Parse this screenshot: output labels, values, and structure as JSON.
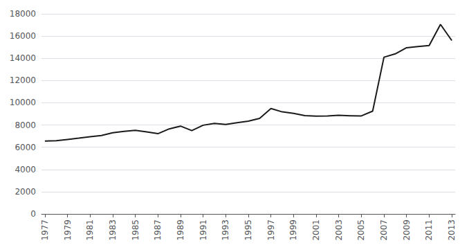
{
  "chart_data": {
    "type": "line",
    "x": [
      1977,
      1978,
      1979,
      1980,
      1981,
      1982,
      1983,
      1984,
      1985,
      1986,
      1987,
      1988,
      1989,
      1990,
      1991,
      1992,
      1993,
      1994,
      1995,
      1996,
      1997,
      1998,
      1999,
      2000,
      2001,
      2002,
      2003,
      2004,
      2005,
      2006,
      2007,
      2008,
      2009,
      2010,
      2011,
      2012,
      2013
    ],
    "values": [
      6550,
      6580,
      6700,
      6820,
      6950,
      7050,
      7300,
      7420,
      7520,
      7380,
      7220,
      7650,
      7900,
      7500,
      7980,
      8150,
      8050,
      8200,
      8350,
      8600,
      9480,
      9180,
      9050,
      8850,
      8800,
      8820,
      8870,
      8830,
      8820,
      9250,
      14100,
      14400,
      14950,
      15050,
      15150,
      17050,
      15600
    ],
    "color": "#1a1a1a",
    "xlim": [
      1976.7,
      2013.3
    ],
    "xticks": [
      1977,
      1979,
      1981,
      1983,
      1985,
      1987,
      1989,
      1991,
      1993,
      1995,
      1997,
      1999,
      2001,
      2003,
      2005,
      2007,
      2009,
      2011,
      2013
    ],
    "ylim": [
      0,
      18000
    ],
    "yticks": [
      0,
      2000,
      4000,
      6000,
      8000,
      10000,
      12000,
      14000,
      16000,
      18000
    ],
    "grid": true
  }
}
